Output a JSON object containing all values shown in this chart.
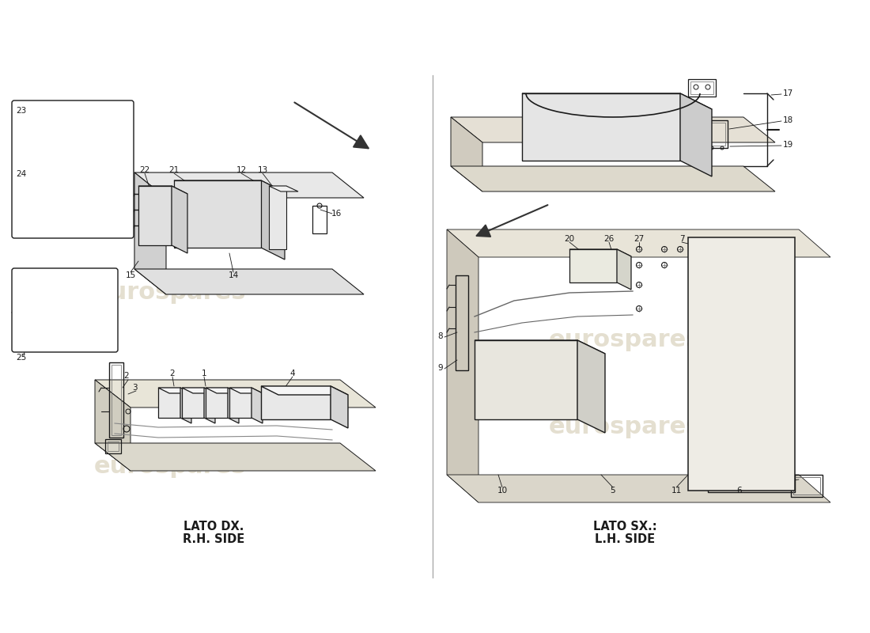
{
  "bg_color": "#ffffff",
  "line_color": "#1a1a1a",
  "faint_color": "#c8bfa8",
  "divider_color": "#999999",
  "fig_width": 11.0,
  "fig_height": 8.0,
  "left_label_line1": "LATO DX.",
  "left_label_line2": "R.H. SIDE",
  "right_label_line1": "LATO SX.:",
  "right_label_line2": "L.H. SIDE",
  "watermark_text": "eurospares",
  "wm_color": "#cfc5aa",
  "wm_alpha": 0.55,
  "label_fs": 7.5,
  "caption_fs": 10.5
}
